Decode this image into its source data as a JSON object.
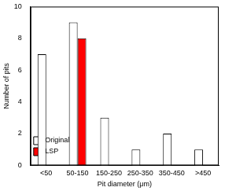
{
  "chart_data": {
    "type": "bar",
    "categories": [
      "<50",
      "50-150",
      "150-250",
      "250-350",
      "350-450",
      ">450"
    ],
    "series": [
      {
        "name": "Original",
        "color": "#ffffff",
        "values": [
          7,
          9,
          3,
          1,
          2,
          1
        ]
      },
      {
        "name": "LSP",
        "color": "#ff0000",
        "values": [
          0,
          8,
          0,
          0,
          0,
          0
        ]
      }
    ],
    "x_label": "Pit diameter (μm)",
    "y_label": "Number of pits",
    "ylim": [
      0,
      10
    ],
    "yticks": [
      0,
      2,
      4,
      6,
      8,
      10
    ],
    "grid": false,
    "legend": "upper right"
  }
}
